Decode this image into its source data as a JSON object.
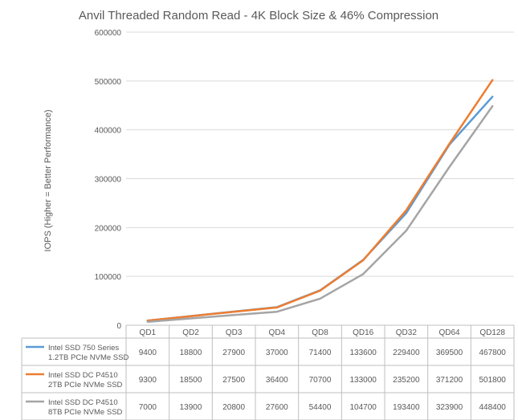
{
  "chart_data": {
    "type": "line",
    "title": "Anvil Threaded Random Read - 4K Block Size & 46% Compression",
    "ylabel": "IOPS (Higher = Better Performance)",
    "xlabel": "",
    "ylim": [
      0,
      600000
    ],
    "yticks": [
      0,
      100000,
      200000,
      300000,
      400000,
      500000,
      600000
    ],
    "grid": true,
    "legend": "data-table",
    "categories": [
      "QD1",
      "QD2",
      "QD3",
      "QD4",
      "QD8",
      "QD16",
      "QD32",
      "QD64",
      "QD128"
    ],
    "series": [
      {
        "name_line1": "Intel SSD 750 Series",
        "name_line2": "1.2TB PCIe NVMe SSD",
        "color": "#5B9BD5",
        "values": [
          9400,
          18800,
          27900,
          37000,
          71400,
          133600,
          229400,
          369500,
          467800
        ]
      },
      {
        "name_line1": "Intel SSD DC P4510",
        "name_line2": "2TB PCIe NVMe SSD",
        "color": "#ED7D31",
        "values": [
          9300,
          18500,
          27500,
          36400,
          70700,
          133000,
          235200,
          371200,
          501800
        ]
      },
      {
        "name_line1": "Intel SSD DC P4510",
        "name_line2": "8TB PCIe NVMe SSD",
        "color": "#A5A5A5",
        "values": [
          7000,
          13900,
          20800,
          27600,
          54400,
          104700,
          193400,
          323900,
          448400
        ]
      }
    ]
  }
}
